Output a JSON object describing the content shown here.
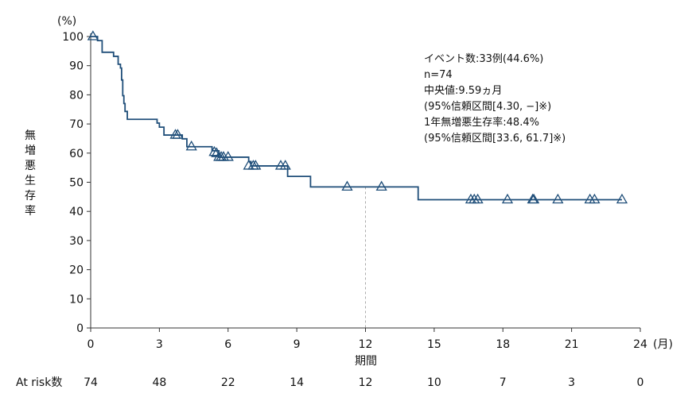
{
  "chart_data": {
    "type": "line",
    "title": "",
    "xlabel": "期間",
    "x_unit": "(月)",
    "ylabel": "無増悪生存率",
    "y_unit": "(%)",
    "xlim": [
      0,
      24
    ],
    "ylim": [
      0,
      100
    ],
    "x_ticks": [
      "0",
      "3",
      "6",
      "9",
      "12",
      "15",
      "18",
      "21",
      "24"
    ],
    "y_ticks": [
      "0",
      "10",
      "20",
      "30",
      "40",
      "50",
      "60",
      "70",
      "80",
      "90",
      "100"
    ],
    "grid": false,
    "line_color": "#1f4e79",
    "median_line_color": "#aaaaaa",
    "median_x": 12,
    "series": [
      {
        "steps": [
          [
            0,
            100
          ],
          [
            0.3,
            98.6
          ],
          [
            0.5,
            94.6
          ],
          [
            1.0,
            93.2
          ],
          [
            1.2,
            90.5
          ],
          [
            1.3,
            89.2
          ],
          [
            1.35,
            85.1
          ],
          [
            1.4,
            79.7
          ],
          [
            1.45,
            77.0
          ],
          [
            1.5,
            74.3
          ],
          [
            1.6,
            71.6
          ],
          [
            2.9,
            70.3
          ],
          [
            3.0,
            68.9
          ],
          [
            3.2,
            66.2
          ],
          [
            4.0,
            64.9
          ],
          [
            4.2,
            62.2
          ],
          [
            5.3,
            60.8
          ],
          [
            5.6,
            58.6
          ],
          [
            6.9,
            57.1
          ],
          [
            7.0,
            55.6
          ],
          [
            8.6,
            52.0
          ],
          [
            9.6,
            48.4
          ],
          [
            14.3,
            44.0
          ],
          [
            23.2,
            44.0
          ]
        ],
        "censored": [
          [
            0.1,
            100
          ],
          [
            3.7,
            66.2
          ],
          [
            3.8,
            66.2
          ],
          [
            4.4,
            62.2
          ],
          [
            5.4,
            60.3
          ],
          [
            5.5,
            59.9
          ],
          [
            5.6,
            58.6
          ],
          [
            5.7,
            58.6
          ],
          [
            5.8,
            58.6
          ],
          [
            6.0,
            58.6
          ],
          [
            6.9,
            55.6
          ],
          [
            7.1,
            55.6
          ],
          [
            7.2,
            55.6
          ],
          [
            8.3,
            55.6
          ],
          [
            8.5,
            55.6
          ],
          [
            11.2,
            48.4
          ],
          [
            12.7,
            48.4
          ],
          [
            16.6,
            44.0
          ],
          [
            16.75,
            44.0
          ],
          [
            16.9,
            44.0
          ],
          [
            18.2,
            44.0
          ],
          [
            19.3,
            44.0
          ],
          [
            19.35,
            44.0
          ],
          [
            20.4,
            44.0
          ],
          [
            21.8,
            44.0
          ],
          [
            22.0,
            44.0
          ],
          [
            23.2,
            44.0
          ]
        ]
      }
    ],
    "annotations": [
      "イベント数:33例(44.6%)",
      "n=74",
      "中央値:9.59ヵ月",
      "(95%信頼区間[4.30, −]※)",
      "1年無増悪生存率:48.4%",
      "(95%信頼区間[33.6, 61.7]※)"
    ],
    "at_risk": {
      "label": "At risk数",
      "values": [
        "74",
        "48",
        "22",
        "14",
        "12",
        "10",
        "7",
        "3",
        "0"
      ]
    }
  }
}
